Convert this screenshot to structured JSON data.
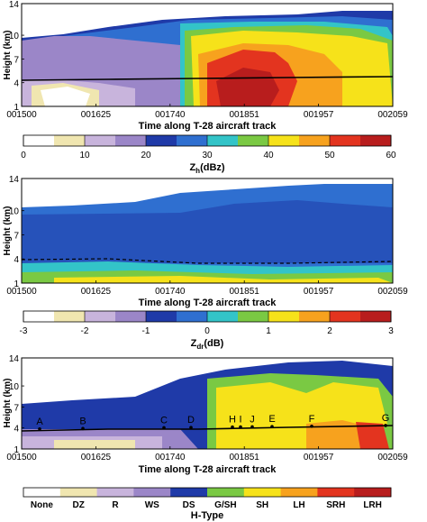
{
  "chart_data": [
    {
      "type": "heatmap",
      "variable": "Zh",
      "ylabel": "Height (km)",
      "xlabel": "Time along T-28 aircraft track",
      "xticks": [
        "001500",
        "001625",
        "001740",
        "001851",
        "001957",
        "002059"
      ],
      "yticks": [
        "1",
        "4",
        "7",
        "10",
        "14"
      ],
      "colorbar": {
        "label_main": "Z",
        "label_sub": "h",
        "label_unit": "(dBz)",
        "ticks": [
          "0",
          "10",
          "20",
          "30",
          "40",
          "50",
          "60"
        ],
        "colors": [
          "#ffffff",
          "#f0e6b0",
          "#c8b4dc",
          "#9b86c8",
          "#1f3aa8",
          "#2f6fd0",
          "#33c4c8",
          "#7ac943",
          "#f6e21a",
          "#f7a21e",
          "#e3341f",
          "#b81d1d"
        ]
      },
      "palette": {
        "bg": "#1f3aa8",
        "blue2": "#2f6fd0",
        "teal": "#33c4c8",
        "green": "#7ac943",
        "yellow": "#f6e21a",
        "orange": "#f7a21e",
        "red": "#e3341f",
        "dred": "#b81d1d",
        "lav": "#c8b4dc",
        "purple": "#9b86c8",
        "cream": "#f0e6b0",
        "white": "#ffffff"
      }
    },
    {
      "type": "heatmap",
      "variable": "Zdr",
      "ylabel": "Height (km)",
      "xlabel": "Time along T-28 aircraft track",
      "xticks": [
        "001500",
        "001625",
        "001740",
        "001851",
        "001957",
        "002059"
      ],
      "yticks": [
        "1",
        "4",
        "7",
        "10",
        "14"
      ],
      "colorbar": {
        "label_main": "Z",
        "label_sub": "dr",
        "label_unit": "(dB)",
        "ticks": [
          "-3",
          "-2",
          "-1",
          "0",
          "1",
          "2",
          "3"
        ],
        "colors": [
          "#ffffff",
          "#f0e6b0",
          "#c8b4dc",
          "#9b86c8",
          "#1f3aa8",
          "#2f6fd0",
          "#33c4c8",
          "#7ac943",
          "#f6e21a",
          "#f7a21e",
          "#e3341f",
          "#b81d1d"
        ]
      }
    },
    {
      "type": "heatmap",
      "variable": "H-Type",
      "ylabel": "Height (km)",
      "xlabel": "Time along T-28 aircraft track",
      "xticks": [
        "001500",
        "001625",
        "001740",
        "001851",
        "001957",
        "002059"
      ],
      "yticks": [
        "1",
        "4",
        "7",
        "10",
        "14"
      ],
      "annotations": [
        "A",
        "B",
        "C",
        "D",
        "H",
        "I",
        "J",
        "E",
        "F",
        "G"
      ],
      "colorbar": {
        "label": "H-Type",
        "categories": [
          "None",
          "DZ",
          "R",
          "WS",
          "DS",
          "G/SH",
          "SH",
          "LH",
          "SRH",
          "LRH"
        ],
        "colors": [
          "#ffffff",
          "#f0e6b0",
          "#c8b4dc",
          "#9b86c8",
          "#1f3aa8",
          "#7ac943",
          "#f6e21a",
          "#f7a21e",
          "#e3341f",
          "#b81d1d"
        ]
      }
    }
  ]
}
